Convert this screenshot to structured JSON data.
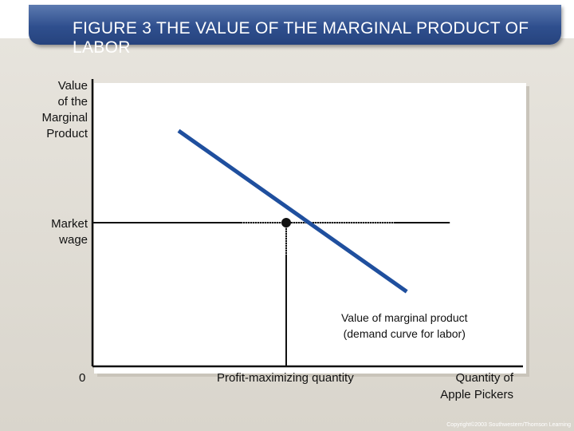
{
  "title": "FIGURE 3 THE VALUE OF THE MARGINAL PRODUCT OF LABOR",
  "copyright": "Copyright©2003 Southwestern/Thomson Learning",
  "chart_data": {
    "type": "line",
    "title": "FIGURE 3 THE VALUE OF THE MARGINAL PRODUCT OF LABOR",
    "ylabel": [
      "Value",
      "of the",
      "Marginal",
      "Product"
    ],
    "xlabel": [
      "Quantity of",
      "Apple Pickers"
    ],
    "xlim": [
      0,
      10
    ],
    "ylim": [
      0,
      10
    ],
    "origin_label": "0",
    "series": [
      {
        "name": "Value of marginal product (demand curve for labor)",
        "label_lines": [
          "Value of marginal product",
          "(demand curve for labor)"
        ],
        "x": [
          2.0,
          7.3
        ],
        "y": [
          8.2,
          2.6
        ],
        "color": "#1f4f9e"
      }
    ],
    "market_wage": {
      "y": 5.0,
      "label": [
        "Market",
        "wage"
      ],
      "x_end": 8.3
    },
    "equilibrium": {
      "x": 4.5,
      "y": 5.0,
      "x_label": "Profit-maximizing quantity"
    },
    "grid": false
  }
}
